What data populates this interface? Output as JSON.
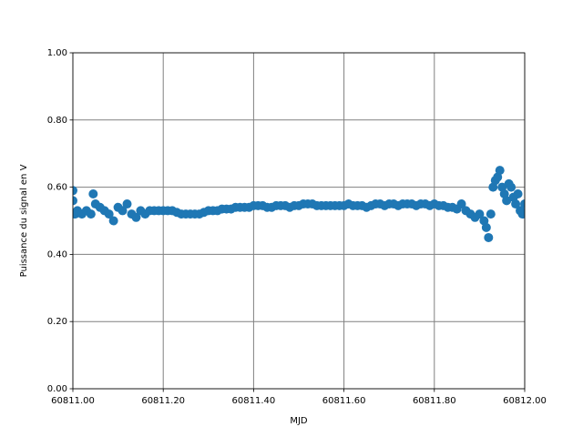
{
  "chart_data": {
    "type": "scatter",
    "x_label": "MJD",
    "y_label": "Puissance du signal en V",
    "color": "#1f77b4",
    "grid": true,
    "x": [
      60811.0,
      60811.0,
      60811.005,
      60811.01,
      60811.02,
      60811.03,
      60811.04,
      60811.045,
      60811.05,
      60811.06,
      60811.07,
      60811.08,
      60811.09,
      60811.1,
      60811.11,
      60811.12,
      60811.13,
      60811.14,
      60811.15,
      60811.16,
      60811.17,
      60811.18,
      60811.19,
      60811.2,
      60811.21,
      60811.22,
      60811.23,
      60811.24,
      60811.25,
      60811.26,
      60811.27,
      60811.28,
      60811.29,
      60811.3,
      60811.31,
      60811.32,
      60811.33,
      60811.34,
      60811.35,
      60811.36,
      60811.37,
      60811.38,
      60811.39,
      60811.4,
      60811.41,
      60811.42,
      60811.43,
      60811.44,
      60811.45,
      60811.46,
      60811.47,
      60811.48,
      60811.49,
      60811.5,
      60811.51,
      60811.52,
      60811.53,
      60811.54,
      60811.55,
      60811.56,
      60811.57,
      60811.58,
      60811.59,
      60811.6,
      60811.61,
      60811.62,
      60811.63,
      60811.64,
      60811.65,
      60811.66,
      60811.67,
      60811.68,
      60811.69,
      60811.7,
      60811.71,
      60811.72,
      60811.73,
      60811.74,
      60811.75,
      60811.76,
      60811.77,
      60811.78,
      60811.79,
      60811.8,
      60811.81,
      60811.82,
      60811.83,
      60811.84,
      60811.85,
      60811.86,
      60811.87,
      60811.88,
      60811.89,
      60811.9,
      60811.91,
      60811.915,
      60811.92,
      60811.925,
      60811.93,
      60811.935,
      60811.94,
      60811.945,
      60811.95,
      60811.955,
      60811.96,
      60811.965,
      60811.97,
      60811.975,
      60811.98,
      60811.985,
      60811.99,
      60811.995,
      60812.0
    ],
    "values": [
      0.59,
      0.56,
      0.52,
      0.53,
      0.52,
      0.53,
      0.52,
      0.58,
      0.55,
      0.54,
      0.53,
      0.52,
      0.5,
      0.54,
      0.53,
      0.55,
      0.52,
      0.51,
      0.53,
      0.52,
      0.53,
      0.53,
      0.53,
      0.53,
      0.53,
      0.53,
      0.525,
      0.52,
      0.52,
      0.52,
      0.52,
      0.52,
      0.525,
      0.53,
      0.53,
      0.53,
      0.535,
      0.535,
      0.535,
      0.54,
      0.54,
      0.54,
      0.54,
      0.545,
      0.545,
      0.545,
      0.54,
      0.54,
      0.545,
      0.545,
      0.545,
      0.54,
      0.545,
      0.545,
      0.55,
      0.55,
      0.55,
      0.545,
      0.545,
      0.545,
      0.545,
      0.545,
      0.545,
      0.545,
      0.55,
      0.545,
      0.545,
      0.545,
      0.54,
      0.545,
      0.55,
      0.55,
      0.545,
      0.55,
      0.55,
      0.545,
      0.55,
      0.55,
      0.55,
      0.545,
      0.55,
      0.55,
      0.545,
      0.55,
      0.545,
      0.545,
      0.54,
      0.54,
      0.535,
      0.55,
      0.53,
      0.52,
      0.51,
      0.52,
      0.5,
      0.48,
      0.45,
      0.52,
      0.6,
      0.62,
      0.63,
      0.65,
      0.6,
      0.58,
      0.56,
      0.61,
      0.6,
      0.57,
      0.55,
      0.58,
      0.53,
      0.52,
      0.55
    ],
    "xlim": [
      60811.0,
      60812.0
    ],
    "xticks": [
      {
        "value": 60811.0,
        "label": "60811.00"
      },
      {
        "value": 60811.2,
        "label": "60811.20"
      },
      {
        "value": 60811.4,
        "label": "60811.40"
      },
      {
        "value": 60811.6,
        "label": "60811.60"
      },
      {
        "value": 60811.8,
        "label": "60811.80"
      },
      {
        "value": 60812.0,
        "label": "60812.00"
      }
    ],
    "ylim": [
      0,
      1
    ],
    "yticks": [
      {
        "value": 0,
        "label": "0.00"
      },
      {
        "value": 0.2,
        "label": "0.20"
      },
      {
        "value": 0.4,
        "label": "0.40"
      },
      {
        "value": 0.6,
        "label": "0.60"
      },
      {
        "value": 0.8,
        "label": "0.80"
      },
      {
        "value": 1,
        "label": "1.00"
      }
    ]
  }
}
